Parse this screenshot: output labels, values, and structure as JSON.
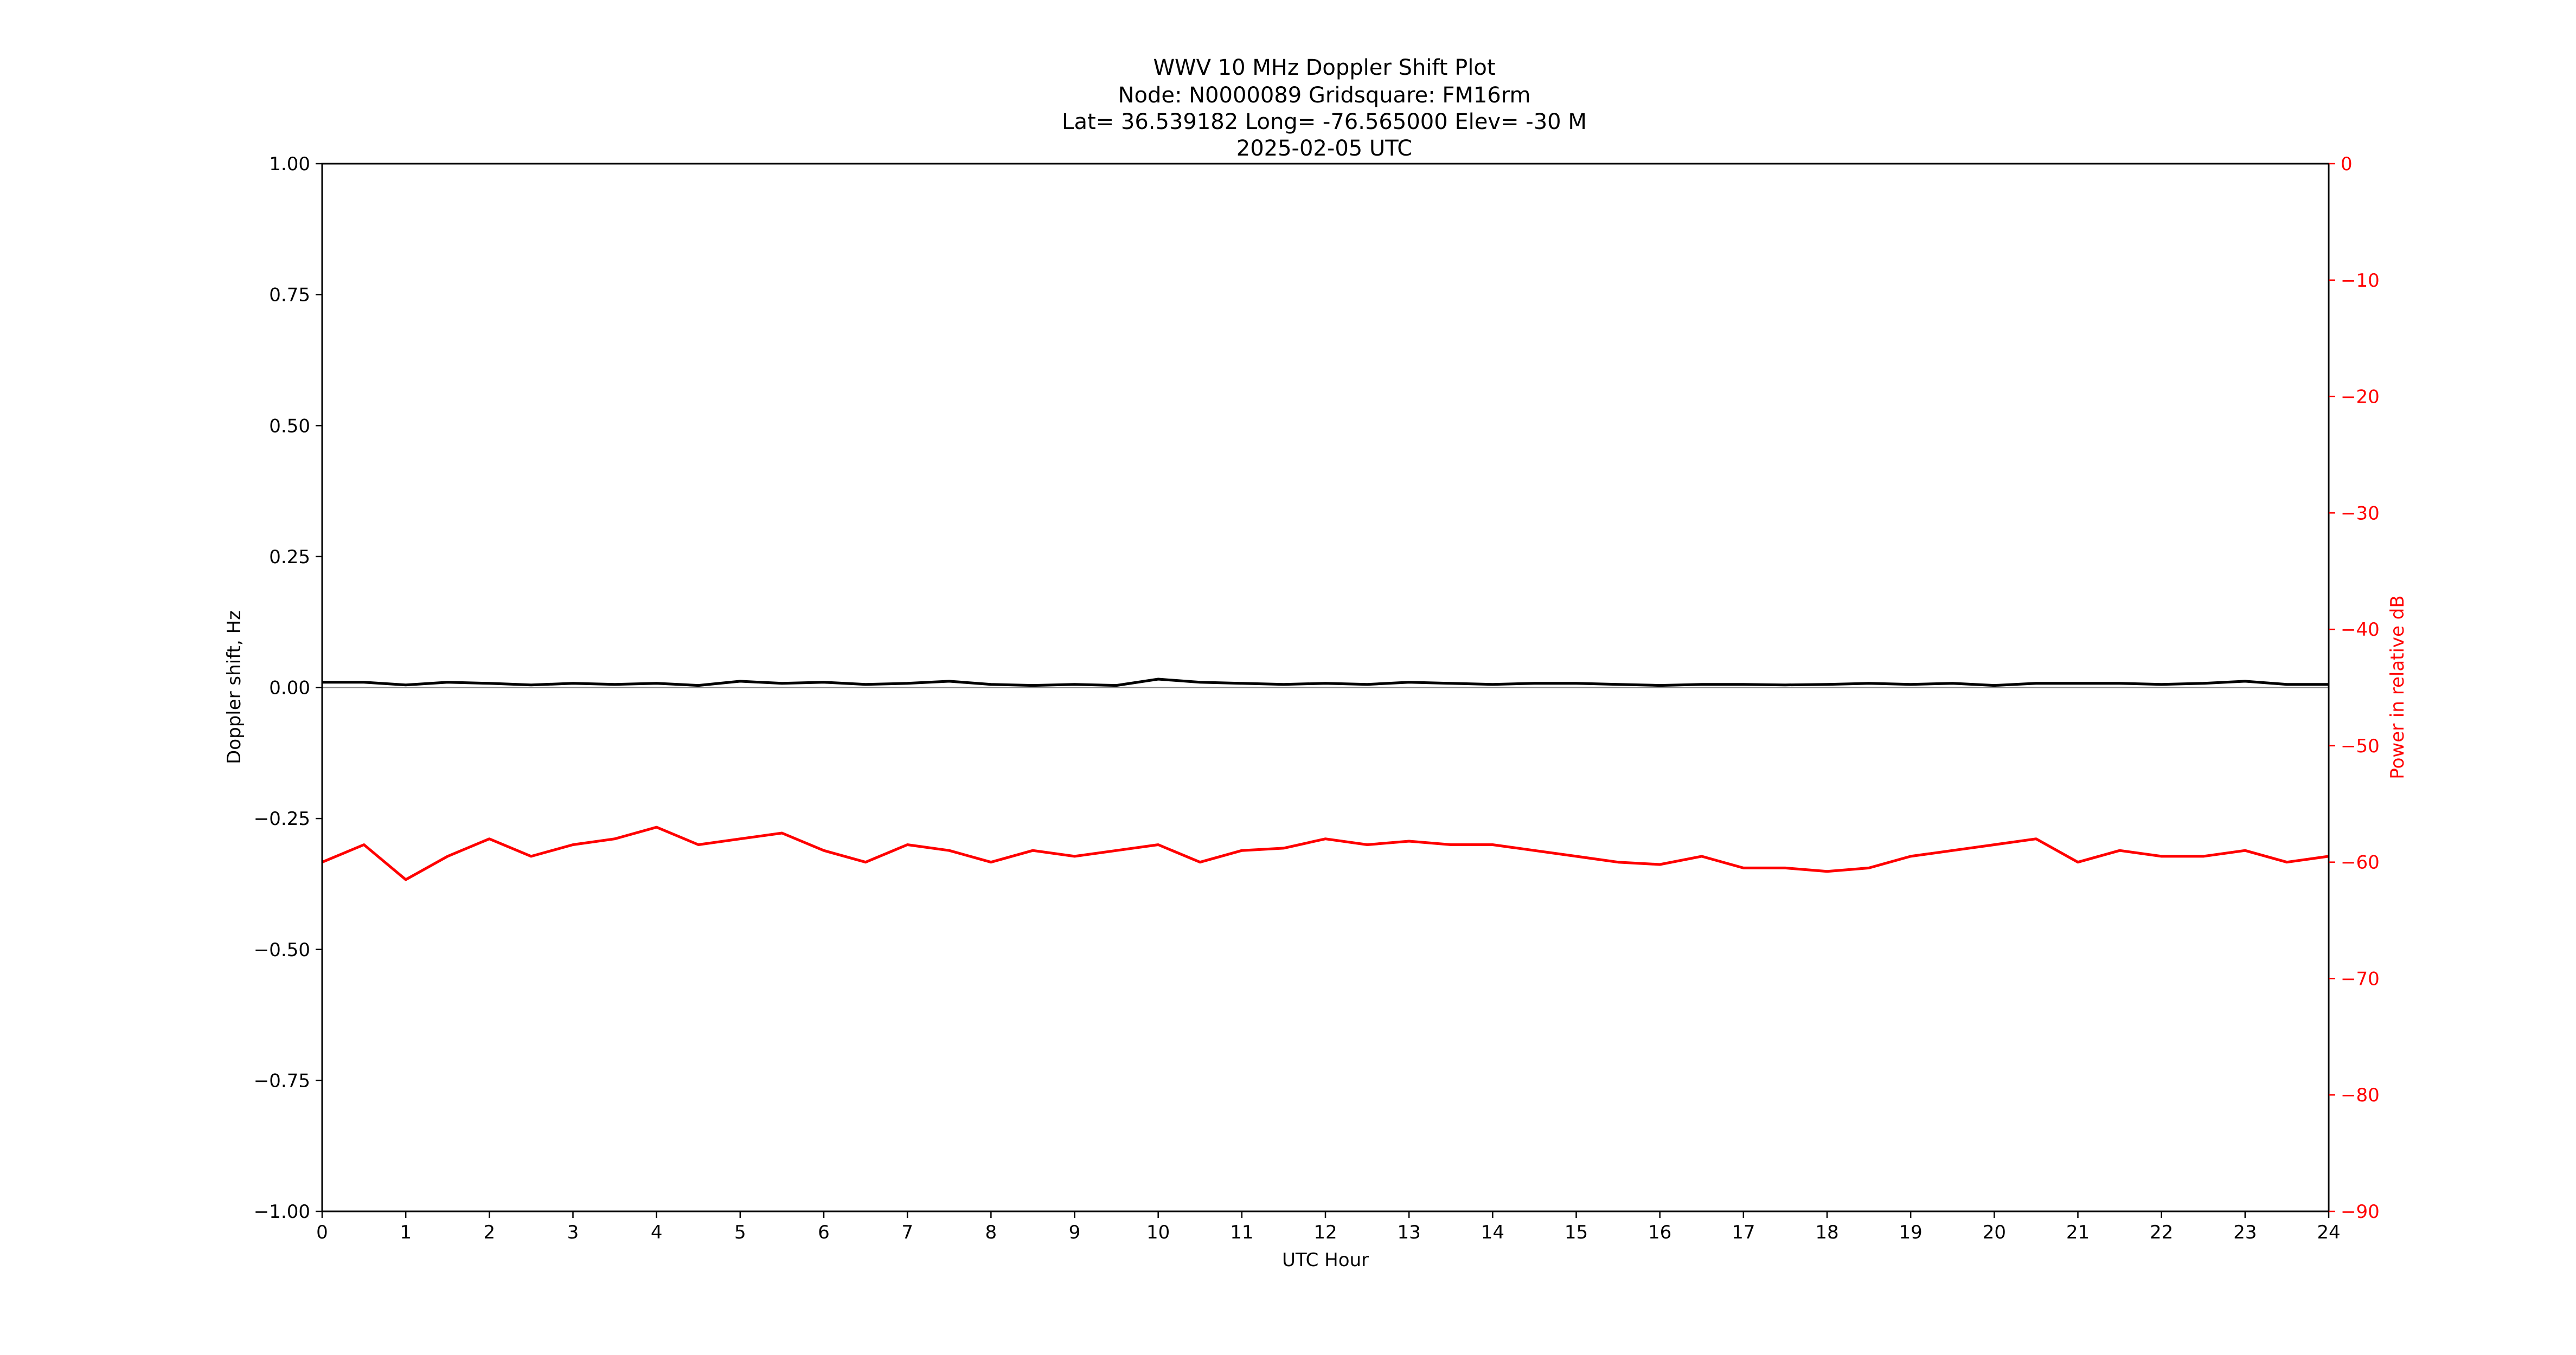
{
  "title_lines": [
    "WWV 10 MHz Doppler Shift Plot",
    "Node:  N0000089     Gridsquare:  FM16rm",
    "Lat= 36.539182    Long= -76.565000    Elev= -30 M",
    "2025-02-05  UTC"
  ],
  "colors": {
    "doppler": "#000000",
    "power": "#ff0000",
    "axis": "#000000",
    "background": "#ffffff"
  },
  "chart_data": {
    "type": "line",
    "xlabel": "UTC Hour",
    "ylabel_left": "Doppler shift, Hz",
    "ylabel_right": "Power in relative dB",
    "xlim": [
      0,
      24
    ],
    "ylim_left": [
      -1.0,
      1.0
    ],
    "ylim_right": [
      -90,
      0
    ],
    "xticks": [
      0,
      1,
      2,
      3,
      4,
      5,
      6,
      7,
      8,
      9,
      10,
      11,
      12,
      13,
      14,
      15,
      16,
      17,
      18,
      19,
      20,
      21,
      22,
      23,
      24
    ],
    "yticks_left": [
      "1.00",
      "0.75",
      "0.50",
      "0.25",
      "0.00",
      "−0.25",
      "−0.50",
      "−0.75",
      "−1.00"
    ],
    "yticks_left_values": [
      1.0,
      0.75,
      0.5,
      0.25,
      0.0,
      -0.25,
      -0.5,
      -0.75,
      -1.0
    ],
    "yticks_right": [
      "0",
      "−10",
      "−20",
      "−30",
      "−40",
      "−50",
      "−60",
      "−70",
      "−80",
      "−90"
    ],
    "yticks_right_values": [
      0,
      -10,
      -20,
      -30,
      -40,
      -50,
      -60,
      -70,
      -80,
      -90
    ],
    "grid": false,
    "legend": "none",
    "x": [
      0,
      0.5,
      1,
      1.5,
      2,
      2.5,
      3,
      3.5,
      4,
      4.5,
      5,
      5.5,
      6,
      6.5,
      7,
      7.5,
      8,
      8.5,
      9,
      9.5,
      10,
      10.5,
      11,
      11.5,
      12,
      12.5,
      13,
      13.5,
      14,
      14.5,
      15,
      15.5,
      16,
      16.5,
      17,
      17.5,
      18,
      18.5,
      19,
      19.5,
      20,
      20.5,
      21,
      21.5,
      22,
      22.5,
      23,
      23.5,
      24
    ],
    "series": [
      {
        "axis": "left",
        "values": [
          0.01,
          0.01,
          0.005,
          0.01,
          0.008,
          0.005,
          0.008,
          0.006,
          0.008,
          0.004,
          0.012,
          0.008,
          0.01,
          0.006,
          0.008,
          0.012,
          0.006,
          0.004,
          0.006,
          0.004,
          0.016,
          0.01,
          0.008,
          0.006,
          0.008,
          0.006,
          0.01,
          0.008,
          0.006,
          0.008,
          0.008,
          0.006,
          0.004,
          0.006,
          0.006,
          0.005,
          0.006,
          0.008,
          0.006,
          0.008,
          0.004,
          0.008,
          0.008,
          0.008,
          0.006,
          0.008,
          0.012,
          0.006,
          0.006
        ]
      },
      {
        "axis": "right",
        "values": [
          -60,
          -58.5,
          -61.5,
          -59.5,
          -58,
          -59.5,
          -58.5,
          -58,
          -57,
          -58.5,
          -58,
          -57.5,
          -59,
          -60,
          -58.5,
          -59,
          -60,
          -59,
          -59.5,
          -59,
          -58.5,
          -60,
          -59,
          -58.8,
          -58,
          -58.5,
          -58.2,
          -58.5,
          -58.5,
          -59,
          -59.5,
          -60,
          -60.2,
          -59.5,
          -60.5,
          -60.5,
          -60.8,
          -60.5,
          -59.5,
          -59,
          -58.5,
          -58,
          -60,
          -59,
          -59.5,
          -59.5,
          -59,
          -60,
          -59.5
        ]
      }
    ]
  }
}
